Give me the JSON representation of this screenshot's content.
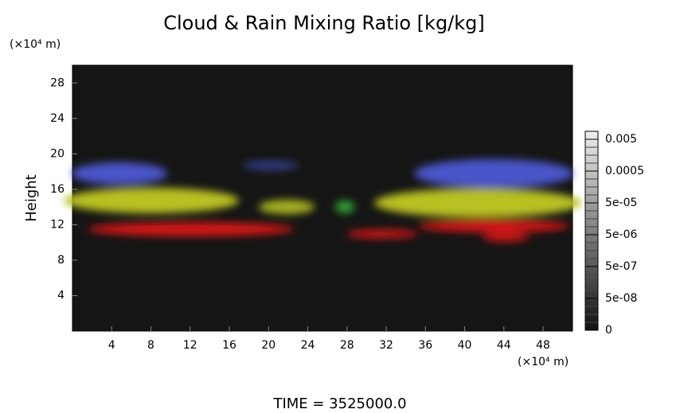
{
  "chart_data": {
    "type": "image",
    "title": "Cloud & Rain Mixing Ratio [kg/kg]",
    "y_unit": "(×10⁴ m)",
    "x_unit": "(×10⁴ m)",
    "ylabel": "Height",
    "footer": "TIME = 3525000.0",
    "xlim": [
      0,
      51
    ],
    "ylim": [
      0,
      30
    ],
    "xticks": [
      4,
      8,
      12,
      16,
      20,
      24,
      28,
      32,
      36,
      40,
      44,
      48
    ],
    "yticks": [
      4,
      8,
      12,
      16,
      20,
      24,
      28
    ],
    "colorbar_ticks": [
      {
        "value": 0,
        "label": "0"
      },
      {
        "value": 5e-08,
        "label": "5e-08"
      },
      {
        "value": 5e-07,
        "label": "5e-07"
      },
      {
        "value": 5e-06,
        "label": "5e-06"
      },
      {
        "value": 5e-05,
        "label": "5e-05"
      },
      0.0005,
      0.005
    ]
  }
}
